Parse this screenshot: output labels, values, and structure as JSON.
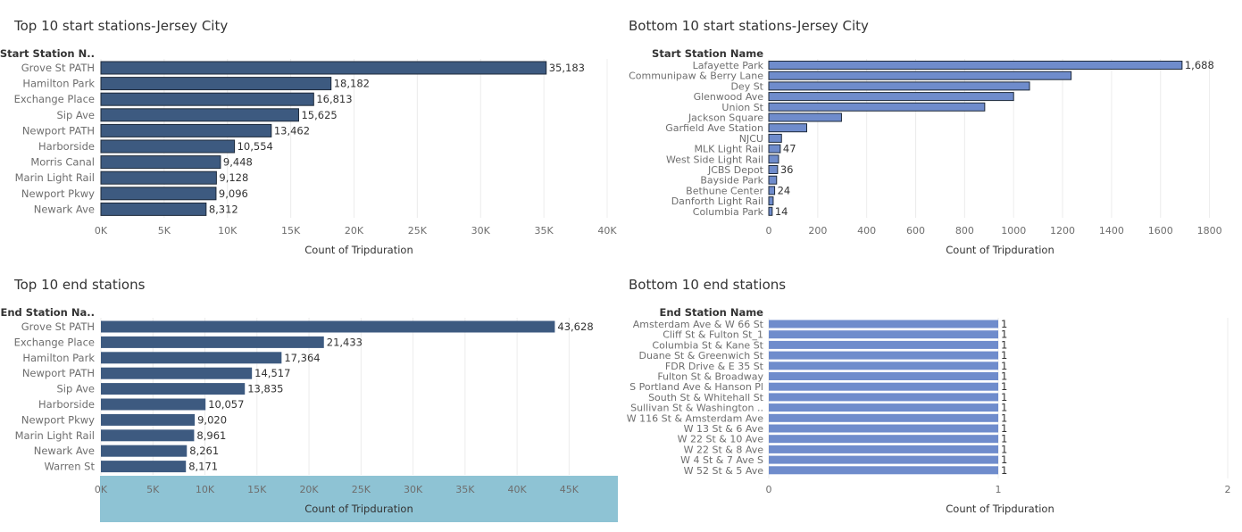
{
  "colors": {
    "bar_dark": "#3d5a80",
    "bar_light": "#6f8ccc",
    "grid": "#ececec",
    "axis_highlight": "#8ec3d4",
    "label_text": "#6e6e6e",
    "title_text": "#333333"
  },
  "chart_data": [
    {
      "type": "bar",
      "orientation": "horizontal",
      "title": "Top 10 start stations-Jersey City",
      "category_header": "Start Station N..",
      "xlabel": "Count of Tripduration",
      "categories": [
        "Grove St PATH",
        "Hamilton Park",
        "Exchange Place",
        "Sip Ave",
        "Newport PATH",
        "Harborside",
        "Morris Canal",
        "Marin Light Rail",
        "Newport Pkwy",
        "Newark Ave"
      ],
      "values": [
        35183,
        18182,
        16813,
        15625,
        13462,
        10554,
        9448,
        9128,
        9096,
        8312
      ],
      "value_labels": [
        "35,183",
        "18,182",
        "16,813",
        "15,625",
        "13,462",
        "10,554",
        "9,448",
        "9,128",
        "9,096",
        "8,312"
      ],
      "xlim": [
        0,
        40000
      ],
      "ticks": [
        0,
        5000,
        10000,
        15000,
        20000,
        25000,
        30000,
        35000,
        40000
      ],
      "tick_labels": [
        "0K",
        "5K",
        "10K",
        "15K",
        "20K",
        "25K",
        "30K",
        "35K",
        "40K"
      ],
      "bar_color": "#3d5a80",
      "bar_outline": true,
      "grid": true
    },
    {
      "type": "bar",
      "orientation": "horizontal",
      "title": "Bottom 10 start stations-Jersey City",
      "category_header": "Start Station Name",
      "xlabel": "Count of Tripduration",
      "categories": [
        "Lafayette Park",
        "Communipaw & Berry Lane",
        "Dey St",
        "Glenwood Ave",
        "Union St",
        "Jackson Square",
        "Garfield Ave Station",
        "NJCU",
        "MLK Light Rail",
        "West Side Light Rail",
        "JCBS Depot",
        "Bayside Park",
        "Bethune Center",
        "Danforth Light Rail",
        "Columbia Park"
      ],
      "values": [
        1688,
        1235,
        1065,
        1000,
        882,
        297,
        155,
        52,
        47,
        40,
        36,
        32,
        24,
        18,
        14
      ],
      "value_labels": [
        "1,688",
        "",
        "",
        "",
        "",
        "",
        "",
        "",
        "47",
        "",
        "36",
        "",
        "24",
        "",
        "14"
      ],
      "xlim": [
        0,
        1900
      ],
      "ticks": [
        0,
        200,
        400,
        600,
        800,
        1000,
        1200,
        1400,
        1600,
        1800
      ],
      "tick_labels": [
        "0",
        "200",
        "400",
        "600",
        "800",
        "1000",
        "1200",
        "1400",
        "1600",
        "1800"
      ],
      "bar_color": "#6f8ccc",
      "bar_outline": true,
      "grid": true
    },
    {
      "type": "bar",
      "orientation": "horizontal",
      "title": "Top 10 end stations",
      "category_header": "End Station Na..",
      "xlabel": "Count of Tripduration",
      "categories": [
        "Grove St PATH",
        "Exchange Place",
        "Hamilton Park",
        "Newport PATH",
        "Sip Ave",
        "Harborside",
        "Newport Pkwy",
        "Marin Light Rail",
        "Newark Ave",
        "Warren St"
      ],
      "values": [
        43628,
        21433,
        17364,
        14517,
        13835,
        10057,
        9020,
        8961,
        8261,
        8171
      ],
      "value_labels": [
        "43,628",
        "21,433",
        "17,364",
        "14,517",
        "13,835",
        "10,057",
        "9,020",
        "8,961",
        "8,261",
        "8,171"
      ],
      "xlim": [
        0,
        49000
      ],
      "ticks": [
        0,
        5000,
        10000,
        15000,
        20000,
        25000,
        30000,
        35000,
        40000,
        45000
      ],
      "tick_labels": [
        "0K",
        "5K",
        "10K",
        "15K",
        "20K",
        "25K",
        "30K",
        "35K",
        "40K",
        "45K"
      ],
      "bar_color": "#3d5a80",
      "bar_outline": false,
      "grid": true,
      "axis_highlighted": true
    },
    {
      "type": "bar",
      "orientation": "horizontal",
      "title": "Bottom 10 end stations",
      "category_header": "End Station Name",
      "xlabel": "Count of Tripduration",
      "categories": [
        "Amsterdam Ave & W 66 St",
        "Cliff St & Fulton St_1",
        "Columbia St & Kane St",
        "Duane St & Greenwich St",
        "FDR Drive & E 35 St",
        "Fulton St & Broadway",
        "S Portland Ave & Hanson Pl",
        "South St & Whitehall St",
        "Sullivan St & Washington ..",
        "W 116 St & Amsterdam Ave",
        "W 13 St & 6 Ave",
        "W 22 St & 10 Ave",
        "W 22 St & 8 Ave",
        "W 4 St & 7 Ave S",
        "W 52 St & 5 Ave"
      ],
      "values": [
        1,
        1,
        1,
        1,
        1,
        1,
        1,
        1,
        1,
        1,
        1,
        1,
        1,
        1,
        1
      ],
      "value_labels": [
        "1",
        "1",
        "1",
        "1",
        "1",
        "1",
        "1",
        "1",
        "1",
        "1",
        "1",
        "1",
        "1",
        "1",
        "1"
      ],
      "xlim": [
        0,
        2
      ],
      "ticks": [
        0,
        1,
        2
      ],
      "tick_labels": [
        "0",
        "1",
        "2"
      ],
      "bar_color": "#6f8ccc",
      "bar_outline": false,
      "grid": true
    }
  ]
}
